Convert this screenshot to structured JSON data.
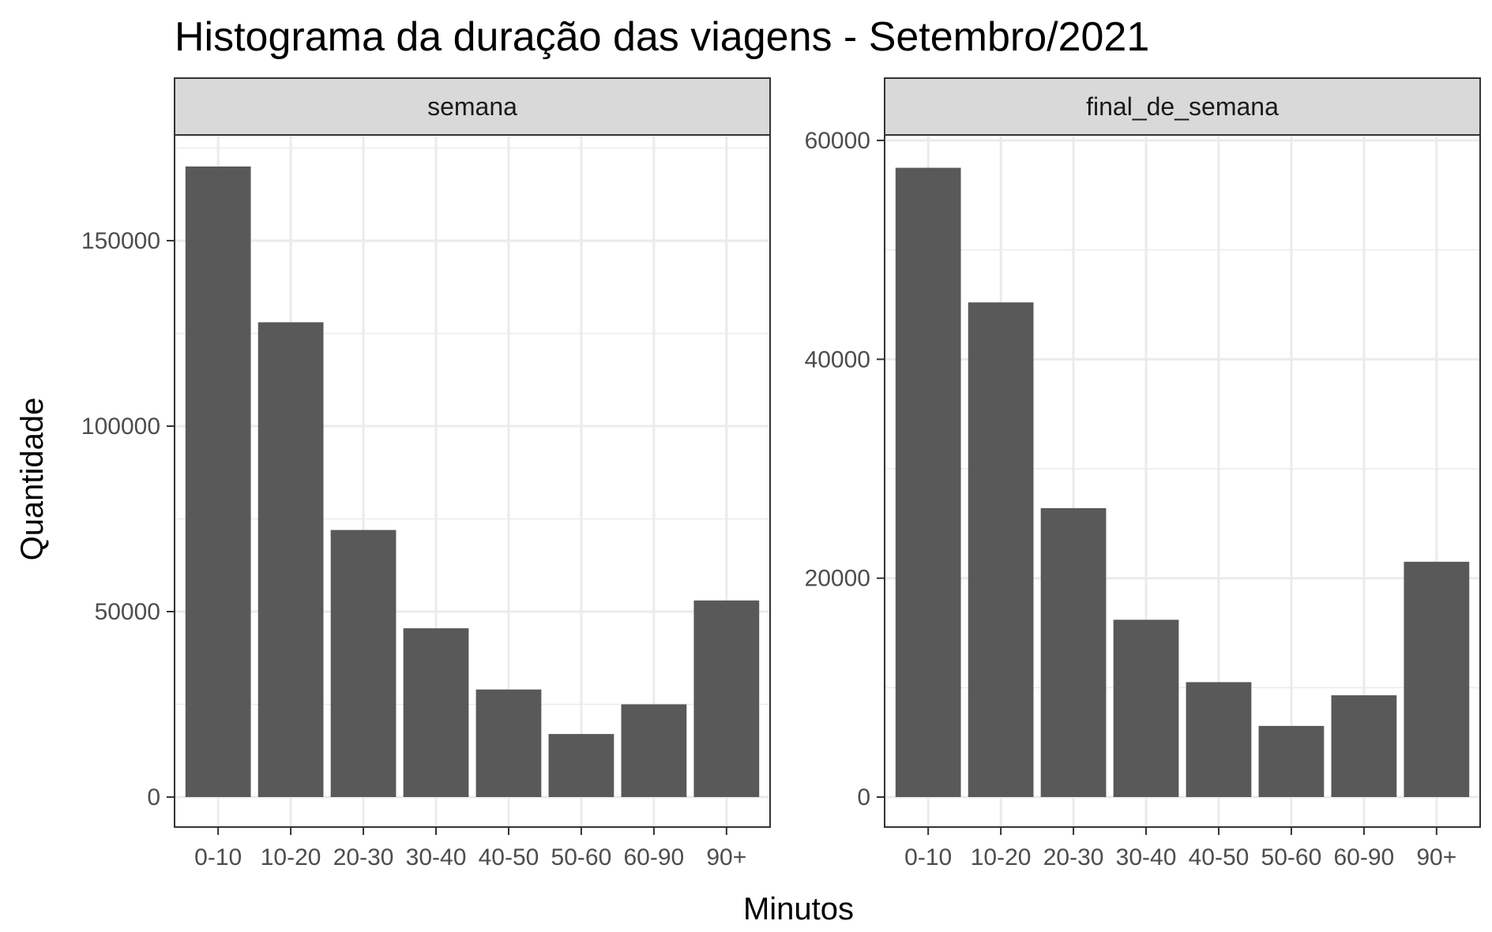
{
  "chart_data": {
    "type": "bar",
    "title": "Histograma da duração das viagens - Setembro/2021",
    "xlabel": "Minutos",
    "ylabel": "Quantidade",
    "categories": [
      "0-10",
      "10-20",
      "20-30",
      "30-40",
      "40-50",
      "50-60",
      "60-90",
      "90+"
    ],
    "grid": true,
    "bar_color": "#595959",
    "panels": [
      {
        "name": "semana",
        "yticks": [
          0,
          50000,
          100000,
          150000
        ],
        "ylim": [
          0,
          178500
        ],
        "values": [
          170000,
          128000,
          72000,
          45500,
          29000,
          17000,
          25000,
          53000
        ]
      },
      {
        "name": "final_de_semana",
        "yticks": [
          0,
          20000,
          40000,
          60000
        ],
        "ylim": [
          0,
          60500
        ],
        "values": [
          57500,
          45200,
          26400,
          16200,
          10500,
          6500,
          9300,
          21500
        ]
      }
    ]
  }
}
